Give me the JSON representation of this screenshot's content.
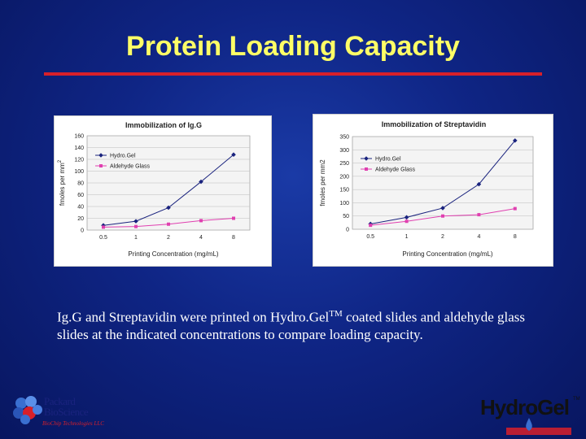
{
  "slide": {
    "title": "Protein Loading Capacity",
    "caption_part1": "Ig.G and Streptavidin were printed on Hydro.Gel",
    "caption_tm": "TM",
    "caption_part2": " coated slides and aldehyde glass slides at the indicated concentrations to compare loading capacity."
  },
  "logos": {
    "packard_line1": "Packard",
    "packard_line2": "BioScience",
    "packard_sub": "BioChip Technologies LLC",
    "hydrogel_name": "HydroGel",
    "hydrogel_tm": "TM"
  },
  "colors": {
    "title": "#ffff66",
    "rule": "#d8202a",
    "hydrogel_series": "#1a237e",
    "aldehyde_series": "#e040b0"
  },
  "chart_data": [
    {
      "type": "line",
      "title": "Immobilization of Ig.G",
      "xlabel": "Printing Concentration (mg/mL)",
      "ylabel": "fmoles per mm",
      "ylabel_sup": "2",
      "categories": [
        "0.5",
        "1",
        "2",
        "4",
        "8"
      ],
      "ylim": [
        0,
        160
      ],
      "yticks": [
        0,
        20,
        40,
        60,
        80,
        100,
        120,
        140,
        160
      ],
      "grid": "horizontal",
      "legend": "top-left",
      "series": [
        {
          "name": "Hydro.Gel",
          "marker": "diamond",
          "values": [
            8,
            15,
            38,
            82,
            128
          ]
        },
        {
          "name": "Aldehyde Glass",
          "marker": "square",
          "values": [
            5,
            6,
            10,
            16,
            20
          ]
        }
      ]
    },
    {
      "type": "line",
      "title": "Immobilization of Streptavidin",
      "xlabel": "Printing Concentration (mg/mL)",
      "ylabel": "fmoles per mm2",
      "ylabel_sup": "",
      "categories": [
        "0.5",
        "1",
        "2",
        "4",
        "8"
      ],
      "ylim": [
        0,
        350
      ],
      "yticks": [
        0,
        50,
        100,
        150,
        200,
        250,
        300,
        350
      ],
      "grid": "horizontal",
      "legend": "top-left",
      "series": [
        {
          "name": "Hydro.Gel",
          "marker": "diamond",
          "values": [
            20,
            45,
            80,
            170,
            335
          ]
        },
        {
          "name": "Aldehyde Glass",
          "marker": "square",
          "values": [
            15,
            30,
            50,
            55,
            78
          ]
        }
      ]
    }
  ]
}
